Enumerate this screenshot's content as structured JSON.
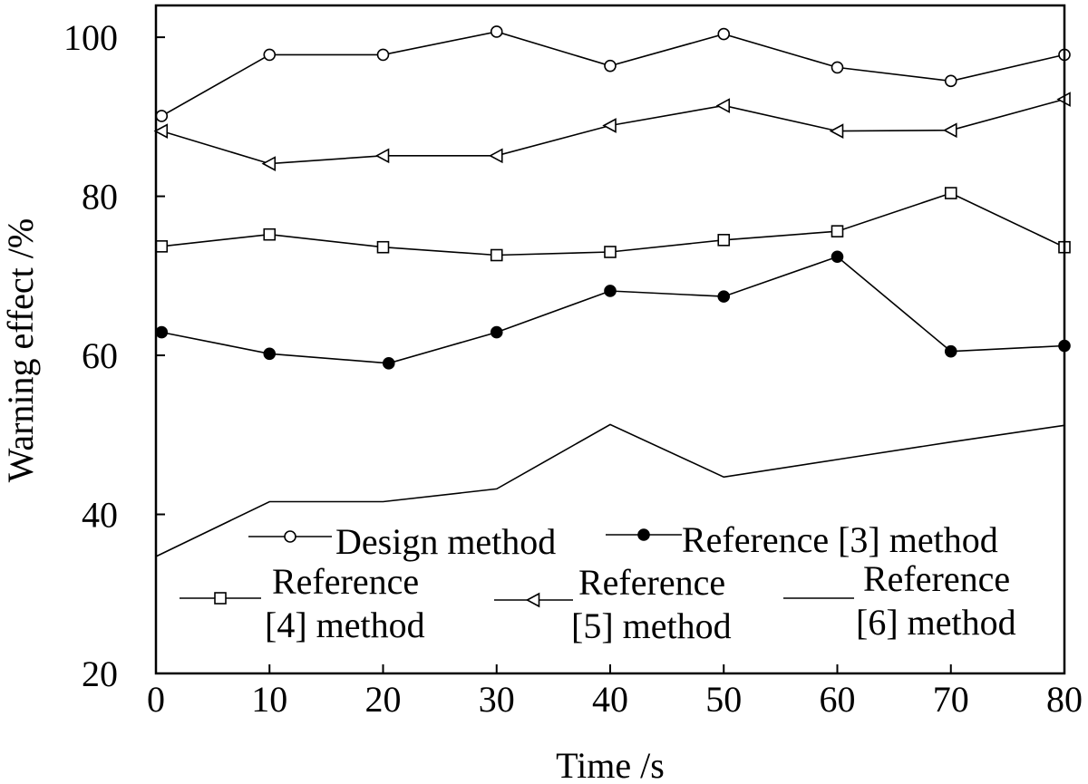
{
  "chart_data": {
    "type": "line",
    "title": "",
    "xlabel": "Time /s",
    "ylabel": "Warning effect /%",
    "xlim": [
      0,
      80
    ],
    "ylim": [
      20,
      104
    ],
    "xticks": [
      0,
      10,
      20,
      30,
      40,
      50,
      60,
      70,
      80
    ],
    "yticks": [
      20,
      40,
      60,
      80,
      100
    ],
    "grid": false,
    "legend_position": "bottom",
    "series": [
      {
        "name": "Design method",
        "legend_lines": [
          "Design method"
        ],
        "marker": "circle-open",
        "x": [
          0.5,
          10,
          20,
          30,
          40,
          50,
          60,
          70,
          80
        ],
        "y": [
          90.1,
          97.8,
          97.8,
          100.7,
          96.4,
          100.4,
          96.2,
          94.5,
          97.8
        ]
      },
      {
        "name": "Reference [3] method",
        "legend_lines": [
          "Reference [3] method"
        ],
        "marker": "circle-filled",
        "x": [
          0.5,
          10,
          20.5,
          30,
          40,
          50,
          60,
          70,
          80
        ],
        "y": [
          62.9,
          60.2,
          59,
          62.9,
          68.1,
          67.4,
          72.4,
          60.5,
          61.2
        ]
      },
      {
        "name": "Reference [4] method",
        "legend_lines": [
          "Reference",
          "[4] method"
        ],
        "marker": "square-open",
        "x": [
          0.5,
          10,
          20,
          30,
          40,
          50,
          60,
          70,
          80
        ],
        "y": [
          73.7,
          75.2,
          73.6,
          72.6,
          73,
          74.5,
          75.6,
          80.4,
          73.6
        ]
      },
      {
        "name": "Reference [5] method",
        "legend_lines": [
          "Reference",
          "[5] method"
        ],
        "marker": "triangle-left-open",
        "x": [
          0.5,
          10,
          20,
          30,
          40,
          50,
          60,
          70,
          80
        ],
        "y": [
          88.2,
          84.1,
          85.1,
          85.1,
          88.9,
          91.4,
          88.2,
          88.3,
          92.2
        ]
      },
      {
        "name": "Reference [6] method",
        "legend_lines": [
          "Reference",
          "[6] method"
        ],
        "marker": "none",
        "x": [
          0,
          10,
          20,
          30,
          40,
          50,
          60,
          70,
          80
        ],
        "y": [
          34.7,
          41.6,
          41.6,
          43.2,
          51.3,
          44.7,
          46.9,
          49.1,
          51.2
        ]
      }
    ]
  }
}
